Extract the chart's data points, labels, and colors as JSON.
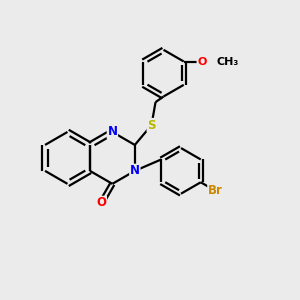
{
  "background_color": "#ebebeb",
  "bond_color": "#000000",
  "bond_width": 1.6,
  "atom_colors": {
    "N": "#0000ff",
    "O": "#ff0000",
    "S": "#b8b800",
    "Br": "#cc8800",
    "C": "#000000"
  },
  "font_size": 8.5,
  "figsize": [
    3.0,
    3.0
  ],
  "dpi": 100
}
